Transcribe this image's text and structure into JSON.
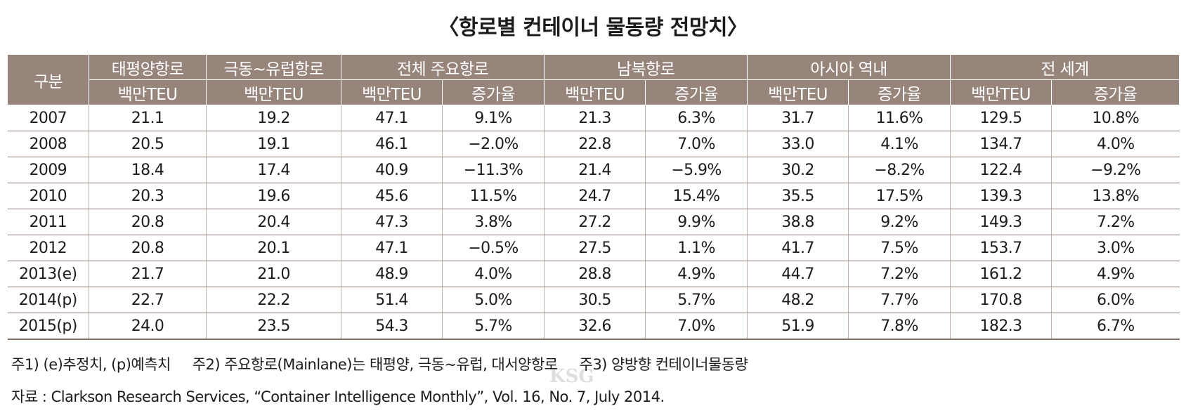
{
  "title": "〈항로별 컨테이너 물동량 전망치〉",
  "table": {
    "header_row1": {
      "category": "구분",
      "pacific": "태평양항로",
      "fe_europe": "극동~유럽항로",
      "mainlane": "전체 주요항로",
      "north_south": "남북항로",
      "intra_asia": "아시아 역내",
      "world": "전 세계"
    },
    "header_row2": [
      "백만TEU",
      "백만TEU",
      "백만TEU",
      "증가율",
      "백만TEU",
      "증가율",
      "백만TEU",
      "증가율",
      "백만TEU",
      "증가율"
    ],
    "rows": [
      [
        "2007",
        "21.1",
        "19.2",
        "47.1",
        "9.1%",
        "21.3",
        "6.3%",
        "31.7",
        "11.6%",
        "129.5",
        "10.8%"
      ],
      [
        "2008",
        "20.5",
        "19.1",
        "46.1",
        "−2.0%",
        "22.8",
        "7.0%",
        "33.0",
        "4.1%",
        "134.7",
        "4.0%"
      ],
      [
        "2009",
        "18.4",
        "17.4",
        "40.9",
        "−11.3%",
        "21.4",
        "−5.9%",
        "30.2",
        "−8.2%",
        "122.4",
        "−9.2%"
      ],
      [
        "2010",
        "20.3",
        "19.6",
        "45.6",
        "11.5%",
        "24.7",
        "15.4%",
        "35.5",
        "17.5%",
        "139.3",
        "13.8%"
      ],
      [
        "2011",
        "20.8",
        "20.4",
        "47.3",
        "3.8%",
        "27.2",
        "9.9%",
        "38.8",
        "9.2%",
        "149.3",
        "7.2%"
      ],
      [
        "2012",
        "20.8",
        "20.1",
        "47.1",
        "−0.5%",
        "27.5",
        "1.1%",
        "41.7",
        "7.5%",
        "153.7",
        "3.0%"
      ],
      [
        "2013(e)",
        "21.7",
        "21.0",
        "48.9",
        "4.0%",
        "28.8",
        "4.9%",
        "44.7",
        "7.2%",
        "161.2",
        "4.9%"
      ],
      [
        "2014(p)",
        "22.7",
        "22.2",
        "51.4",
        "5.0%",
        "30.5",
        "5.7%",
        "48.2",
        "7.7%",
        "170.8",
        "6.0%"
      ],
      [
        "2015(p)",
        "24.0",
        "23.5",
        "54.3",
        "5.7%",
        "32.6",
        "7.0%",
        "51.9",
        "7.8%",
        "182.3",
        "6.7%"
      ]
    ]
  },
  "notes": "주1) (e)추정치, (p)예측치     주2) 주요항로(Mainlane)는 태평양, 극동~유럽, 대서양항로     주3) 양방향 컨테이너물동량",
  "source": "자료 : Clarkson Research Services, “Container Intelligence Monthly”, Vol. 16, No. 7, July 2014.",
  "watermark": "KSG"
}
